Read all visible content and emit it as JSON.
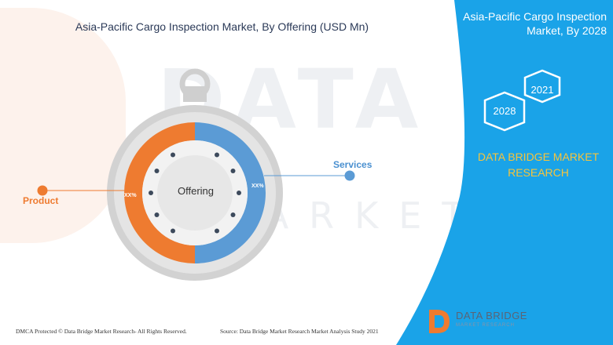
{
  "title": "Asia-Pacific Cargo Inspection Market, By Offering (USD Mn)",
  "panel": {
    "title_line1": "Asia-Pacific Cargo Inspection",
    "title_line2": "Market, By 2028",
    "years": [
      "2021",
      "2028"
    ],
    "brand_line1": "DATA BRIDGE MARKET",
    "brand_line2": "RESEARCH"
  },
  "watermark": {
    "line1": "DATA BRIDGE",
    "line2": "MARKET RESEARCH"
  },
  "footer": {
    "left": "DMCA Protected © Data Bridge Market Research- All Rights Reserved.",
    "right": "Source: Data Bridge Market Research Market Analysis Study 2021"
  },
  "logo": {
    "name": "DATA BRIDGE",
    "tagline": "MARKET RESEARCH"
  },
  "colors": {
    "product": "#ee7b30",
    "services": "#5b9bd5",
    "panel": "#1aa3e8",
    "ring_grey": "#cfcfcf",
    "accent_yellow": "#f7c43b"
  },
  "chart_data": {
    "type": "pie",
    "title": "Asia-Pacific Cargo Inspection Market, By Offering (USD Mn)",
    "center_label": "Offering",
    "segments": [
      {
        "name": "Product",
        "label": "XX%",
        "share": 50
      },
      {
        "name": "Services",
        "label": "XX%",
        "share": 50
      }
    ]
  }
}
